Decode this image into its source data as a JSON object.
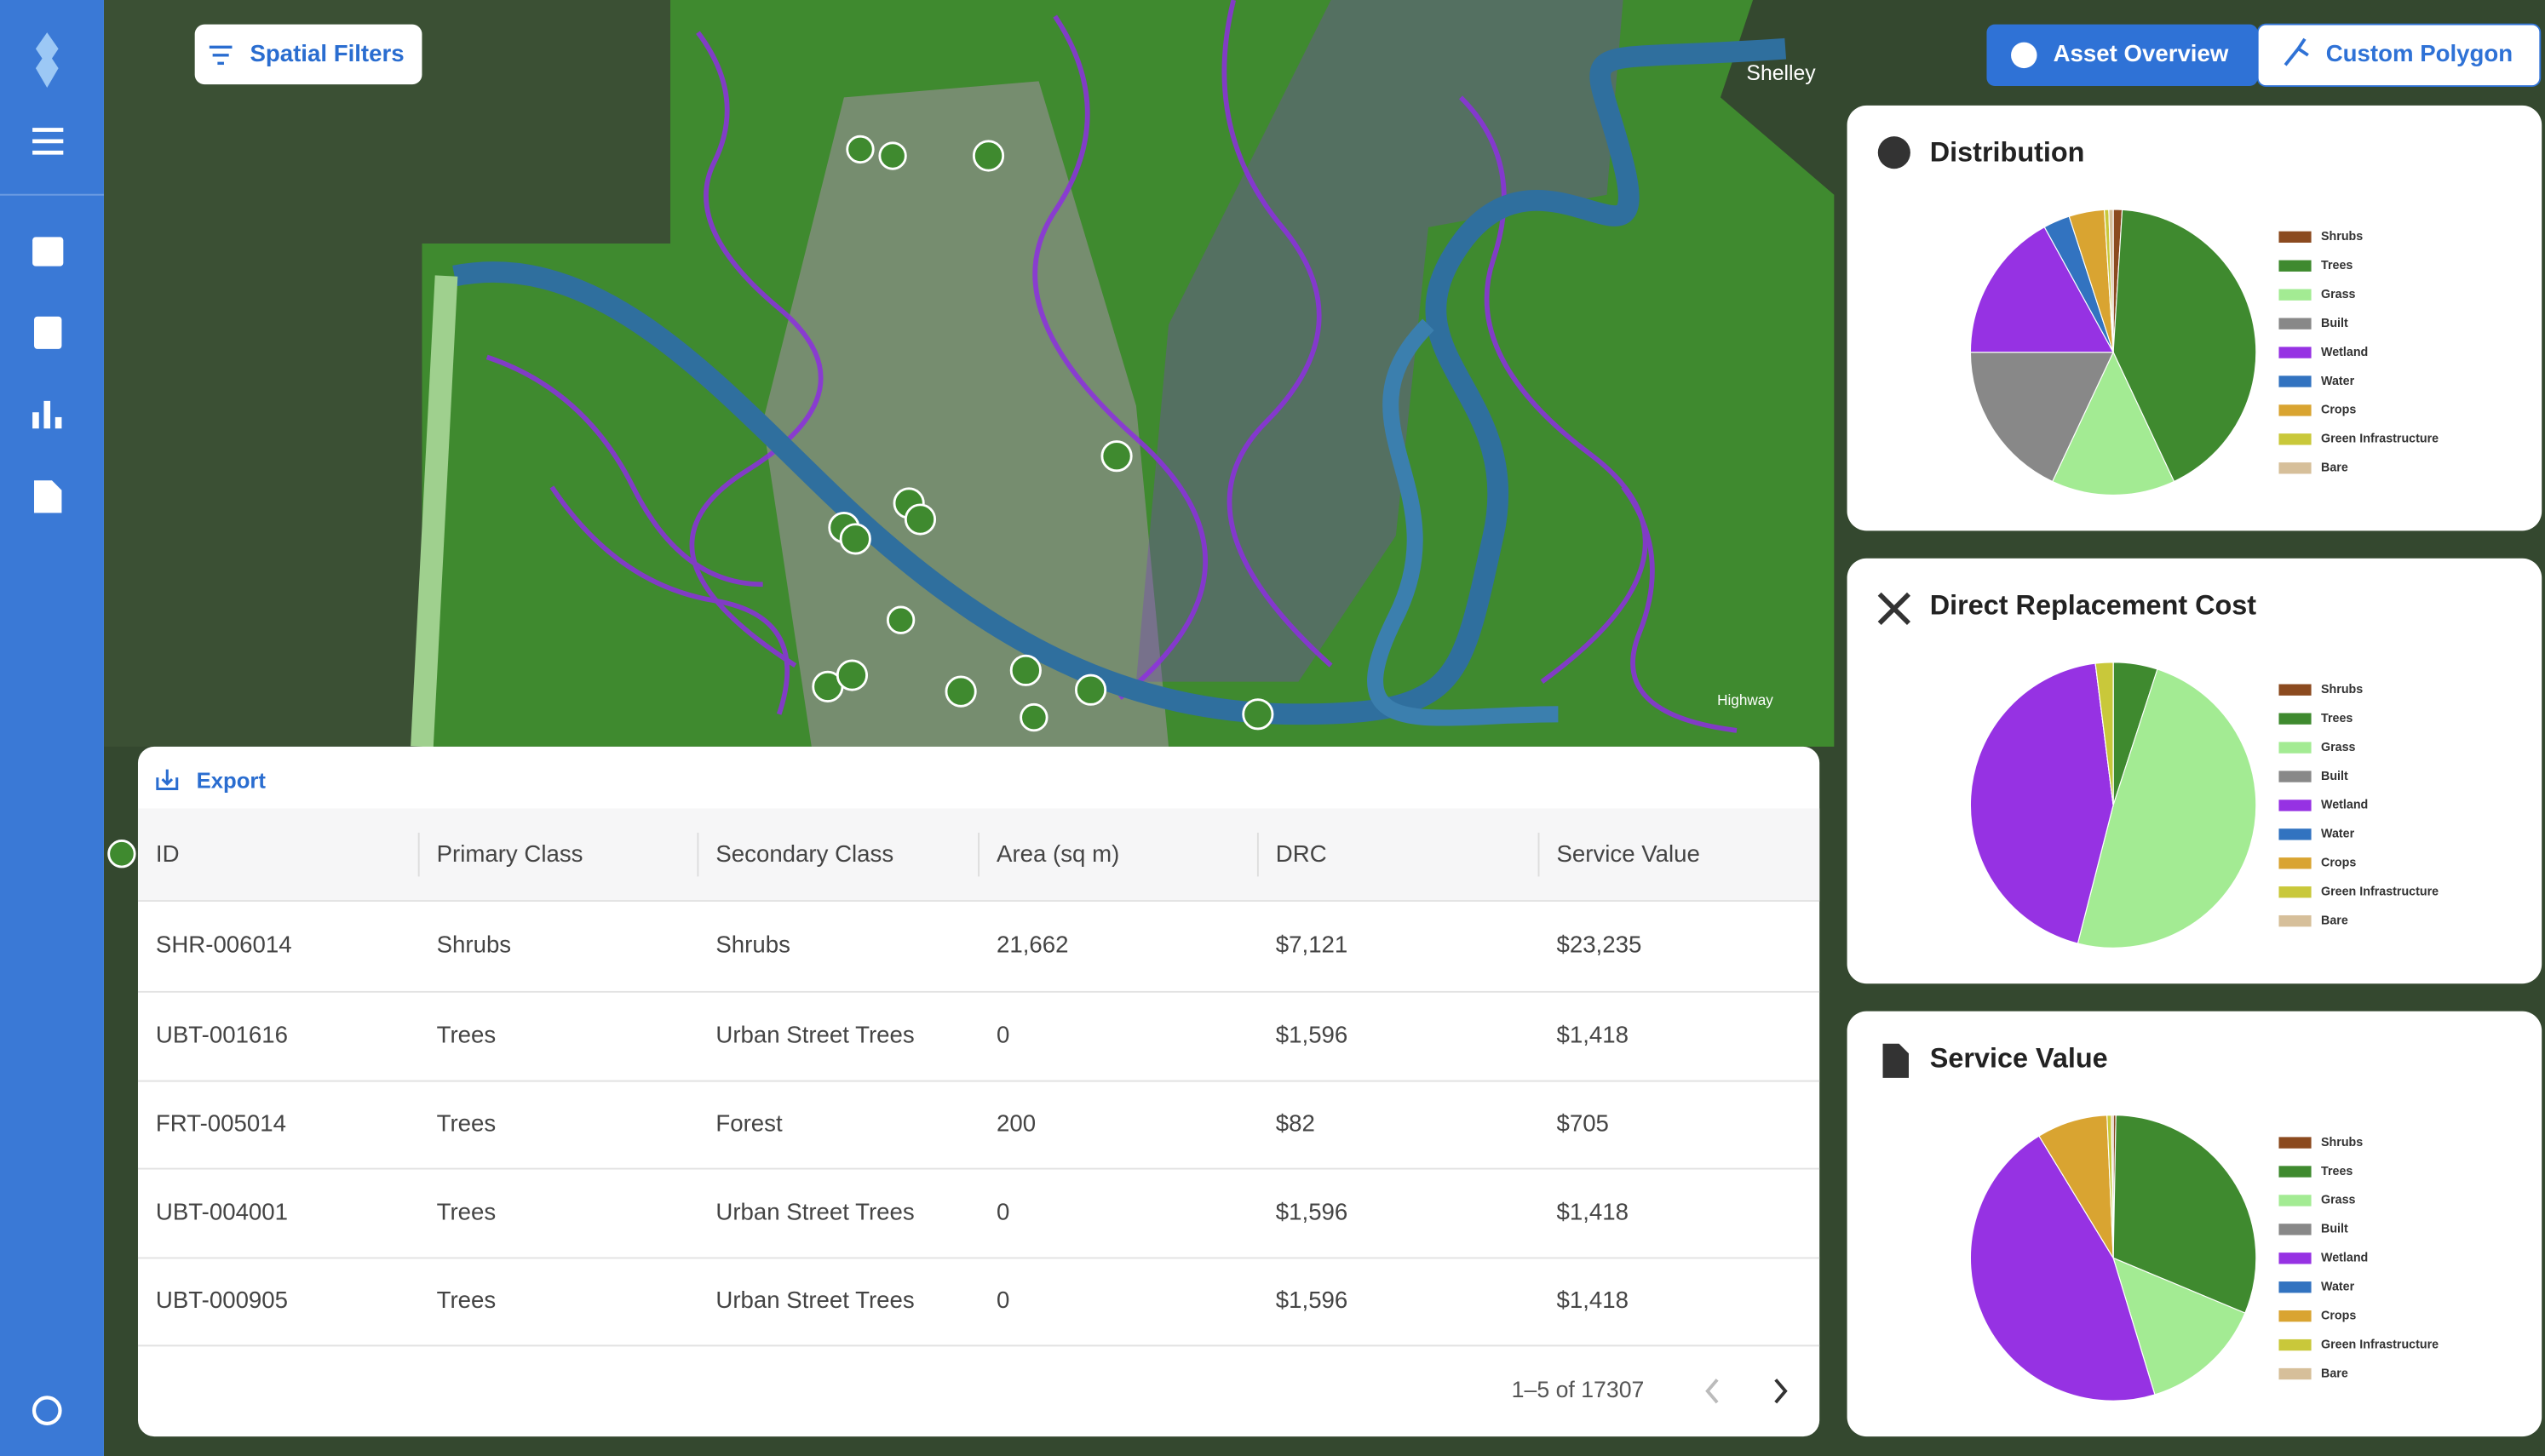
{
  "toolbar": {
    "spatial_filters": "Spatial Filters",
    "asset_overview": "Asset Overview",
    "custom_polygon": "Custom Polygon"
  },
  "map": {
    "labels": [
      "Shelley",
      "Highway"
    ]
  },
  "charts": [
    {
      "type": "pie",
      "title": "Distribution",
      "categories": [
        "Shrubs",
        "Trees",
        "Grass",
        "Built",
        "Wetland",
        "Water",
        "Crops",
        "Green Infrastructure",
        "Bare"
      ],
      "colors": [
        "#8b4a1f",
        "#3f8a2f",
        "#a3eb93",
        "#888888",
        "#9632e3",
        "#3273c0",
        "#d9a431",
        "#c9c83a",
        "#d6bf9a"
      ],
      "values": [
        1,
        42,
        14,
        18,
        17,
        3,
        4,
        0.5,
        0.5
      ]
    },
    {
      "type": "pie",
      "title": "Direct Replacement Cost",
      "categories": [
        "Shrubs",
        "Trees",
        "Grass",
        "Built",
        "Wetland",
        "Water",
        "Crops",
        "Green Infrastructure",
        "Bare"
      ],
      "colors": [
        "#8b4a1f",
        "#3f8a2f",
        "#a3eb93",
        "#888888",
        "#9632e3",
        "#3273c0",
        "#d9a431",
        "#c9c83a",
        "#d6bf9a"
      ],
      "values": [
        0,
        5,
        49,
        0,
        44,
        0,
        0,
        2,
        0
      ]
    },
    {
      "type": "pie",
      "title": "Service Value",
      "categories": [
        "Shrubs",
        "Trees",
        "Grass",
        "Built",
        "Wetland",
        "Water",
        "Crops",
        "Green Infrastructure",
        "Bare"
      ],
      "colors": [
        "#8b4a1f",
        "#3f8a2f",
        "#a3eb93",
        "#888888",
        "#9632e3",
        "#3273c0",
        "#d9a431",
        "#c9c83a",
        "#d6bf9a"
      ],
      "values": [
        0.3,
        31,
        14,
        0,
        46,
        0,
        8,
        0.5,
        0.2
      ]
    }
  ],
  "table": {
    "export": "Export",
    "columns": [
      "ID",
      "Primary Class",
      "Secondary Class",
      "Area (sq m)",
      "DRC",
      "Service Value"
    ],
    "rows": [
      [
        "SHR-006014",
        "Shrubs",
        "Shrubs",
        "21,662",
        "$7,121",
        "$23,235"
      ],
      [
        "UBT-001616",
        "Trees",
        "Urban Street Trees",
        "0",
        "$1,596",
        "$1,418"
      ],
      [
        "FRT-005014",
        "Trees",
        "Forest",
        "200",
        "$82",
        "$705"
      ],
      [
        "UBT-004001",
        "Trees",
        "Urban Street Trees",
        "0",
        "$1,596",
        "$1,418"
      ],
      [
        "UBT-000905",
        "Trees",
        "Urban Street Trees",
        "0",
        "$1,596",
        "$1,418"
      ]
    ],
    "pagination": "1–5 of 17307"
  }
}
